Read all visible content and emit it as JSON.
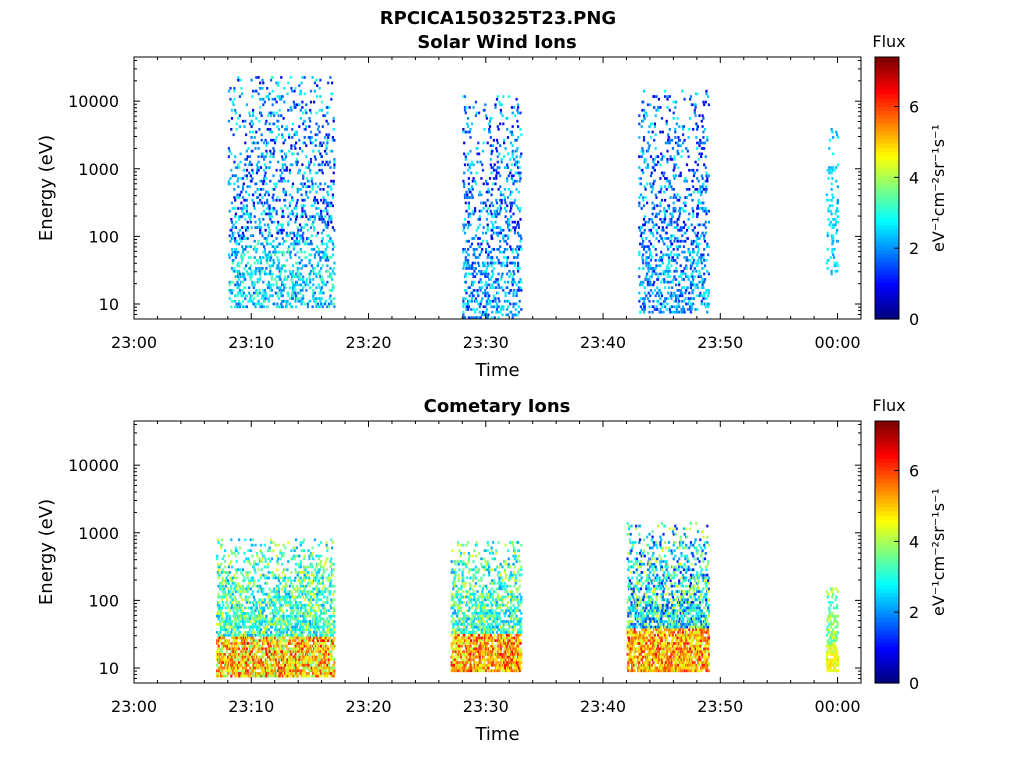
{
  "figure": {
    "title": "RPCICA150325T23.PNG"
  },
  "chart_data": [
    {
      "type": "heatmap",
      "title": "Solar Wind Ions",
      "xlabel": "Time",
      "ylabel": "Energy (eV)",
      "y_scale": "log",
      "ylim": [
        6,
        45000
      ],
      "xlim": [
        "23:00",
        "00:02"
      ],
      "x_ticks": [
        "23:00",
        "23:10",
        "23:20",
        "23:30",
        "23:40",
        "23:50",
        "00:00"
      ],
      "y_ticks": [
        "10",
        "100",
        "1000",
        "10000"
      ],
      "colorbar": {
        "label": "Flux",
        "unit": "eV⁻¹cm⁻²sr⁻¹s⁻¹",
        "range": [
          0,
          7.4
        ],
        "ticks": [
          "0",
          "2",
          "4",
          "6"
        ],
        "colormap": "jet"
      },
      "bursts": [
        {
          "start": "23:08",
          "end": "23:17",
          "emin": 8,
          "emax": 22000,
          "flux": [
            0.6,
            3.2
          ],
          "low_flux": [
            1.5,
            3.5
          ]
        },
        {
          "start": "23:28",
          "end": "23:33",
          "emin": 6,
          "emax": 12000,
          "flux": [
            0.6,
            3.0
          ],
          "low_flux": [
            1.0,
            3.0
          ]
        },
        {
          "start": "23:43",
          "end": "23:49",
          "emin": 7,
          "emax": 14000,
          "flux": [
            0.6,
            3.0
          ],
          "low_flux": [
            1.0,
            3.0
          ]
        },
        {
          "start": "23:59",
          "end": "00:00",
          "emin": 25,
          "emax": 4000,
          "flux": [
            2.0,
            3.0
          ],
          "low_flux": [
            2.0,
            3.0
          ]
        }
      ]
    },
    {
      "type": "heatmap",
      "title": "Cometary Ions",
      "xlabel": "Time",
      "ylabel": "Energy (eV)",
      "y_scale": "log",
      "ylim": [
        6,
        45000
      ],
      "xlim": [
        "23:00",
        "00:02"
      ],
      "x_ticks": [
        "23:00",
        "23:10",
        "23:20",
        "23:30",
        "23:40",
        "23:50",
        "00:00"
      ],
      "y_ticks": [
        "10",
        "100",
        "1000",
        "10000"
      ],
      "colorbar": {
        "label": "Flux",
        "unit": "eV⁻¹cm⁻²sr⁻¹s⁻¹",
        "range": [
          0,
          7.4
        ],
        "ticks": [
          "0",
          "2",
          "4",
          "6"
        ],
        "colormap": "jet"
      },
      "bursts": [
        {
          "start": "23:07",
          "end": "23:17",
          "emin": 7,
          "emax": 800,
          "flux": [
            2.0,
            4.5
          ],
          "low_flux": [
            3.5,
            6.5
          ]
        },
        {
          "start": "23:27",
          "end": "23:33",
          "emin": 8,
          "emax": 700,
          "flux": [
            2.0,
            4.5
          ],
          "low_flux": [
            4.0,
            6.5
          ]
        },
        {
          "start": "23:42",
          "end": "23:49",
          "emin": 8,
          "emax": 1400,
          "flux": [
            1.0,
            4.5
          ],
          "low_flux": [
            4.0,
            6.5
          ]
        },
        {
          "start": "23:59",
          "end": "00:00",
          "emin": 8,
          "emax": 180,
          "flux": [
            3.0,
            4.5
          ],
          "low_flux": [
            4.0,
            5.0
          ]
        }
      ]
    }
  ]
}
